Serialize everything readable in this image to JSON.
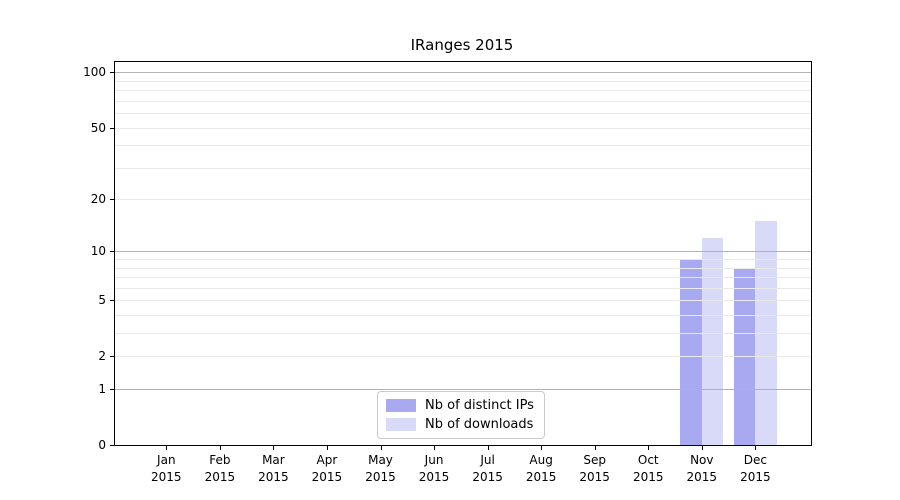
{
  "chart_data": {
    "type": "bar",
    "title": "IRanges 2015",
    "categories": [
      {
        "month": "Jan",
        "year": "2015"
      },
      {
        "month": "Feb",
        "year": "2015"
      },
      {
        "month": "Mar",
        "year": "2015"
      },
      {
        "month": "Apr",
        "year": "2015"
      },
      {
        "month": "May",
        "year": "2015"
      },
      {
        "month": "Jun",
        "year": "2015"
      },
      {
        "month": "Jul",
        "year": "2015"
      },
      {
        "month": "Aug",
        "year": "2015"
      },
      {
        "month": "Sep",
        "year": "2015"
      },
      {
        "month": "Oct",
        "year": "2015"
      },
      {
        "month": "Nov",
        "year": "2015"
      },
      {
        "month": "Dec",
        "year": "2015"
      }
    ],
    "series": [
      {
        "name": "Nb of distinct IPs",
        "color": "#a9a9f2",
        "values": [
          0,
          0,
          0,
          0,
          0,
          0,
          0,
          0,
          0,
          0,
          9,
          8
        ]
      },
      {
        "name": "Nb of downloads",
        "color": "#d9d9f8",
        "values": [
          0,
          0,
          0,
          0,
          0,
          0,
          0,
          0,
          0,
          0,
          12,
          15
        ]
      }
    ],
    "y_axis": {
      "scale": "log1p",
      "tick_values": [
        100,
        50,
        20,
        10,
        5,
        2,
        1,
        0
      ],
      "max": 114,
      "major_gridlines": [
        1,
        10,
        100
      ],
      "minor_gridlines": [
        2,
        3,
        4,
        5,
        6,
        7,
        8,
        9,
        20,
        30,
        40,
        50,
        60,
        70,
        80,
        90
      ]
    },
    "legend": {
      "position": "lower-center"
    },
    "colors": {
      "spine": "#000000",
      "major_grid": "#b3b3b3",
      "minor_grid": "#e9e9e9",
      "background": "#ffffff"
    }
  }
}
